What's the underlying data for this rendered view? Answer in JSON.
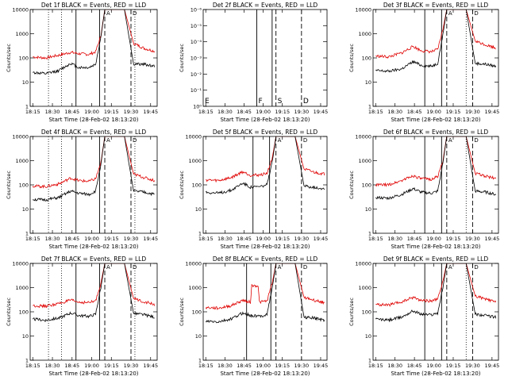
{
  "colors": {
    "black": "#000000",
    "red": "#e00000",
    "background": "#ffffff"
  },
  "panels": [
    {
      "title": "Det 1f BLACK = Events, RED = LLD",
      "xlabel": "Start Time (28-Feb-02 18:13:20)",
      "ylabel": "Counts/sec",
      "xticks": [
        "18:15",
        "18:30",
        "18:45",
        "19:00",
        "19:15",
        "19:30",
        "19:45"
      ],
      "yticks": [
        "1",
        "10",
        "100",
        "1000",
        "10000"
      ],
      "markers": [
        "A",
        "D"
      ]
    },
    {
      "title": "Det 2f BLACK = Events, RED = LLD",
      "xlabel": "Start Time (28-Feb-02 18:13:20)",
      "ylabel": "Counts/sec",
      "xticks": [
        "18:15",
        "18:30",
        "18:45",
        "19:00",
        "19:15",
        "19:30",
        "19:45"
      ],
      "yticks": [
        "10⁰",
        "10⁻¹",
        "10⁻²",
        "10⁻³",
        "10⁻⁴",
        "10⁻⁵",
        "10⁻⁶"
      ],
      "markers": [
        "E",
        "F",
        "S",
        "D"
      ]
    },
    {
      "title": "Det 3f BLACK = Events, RED = LLD",
      "xlabel": "Start Time (28-Feb-02 18:13:20)",
      "ylabel": "Counts/sec",
      "xticks": [
        "18:15",
        "18:30",
        "18:45",
        "19:00",
        "19:15",
        "19:30",
        "19:45"
      ],
      "yticks": [
        "1",
        "10",
        "100",
        "1000",
        "10000"
      ],
      "markers": [
        "A",
        "D"
      ]
    },
    {
      "title": "Det 4f BLACK = Events, RED = LLD",
      "xlabel": "Start Time (28-Feb-02 18:13:20)",
      "ylabel": "Counts/sec",
      "xticks": [
        "18:15",
        "18:30",
        "18:45",
        "19:00",
        "19:15",
        "19:30",
        "19:45"
      ],
      "yticks": [
        "1",
        "10",
        "100",
        "1000",
        "10000"
      ],
      "markers": [
        "A",
        "D"
      ]
    },
    {
      "title": "Det 5f BLACK = Events, RED = LLD",
      "xlabel": "Start Time (28-Feb-02 18:13:20)",
      "ylabel": "Counts/sec",
      "xticks": [
        "18:15",
        "18:30",
        "18:45",
        "19:00",
        "19:15",
        "19:30",
        "19:45"
      ],
      "yticks": [
        "1",
        "10",
        "100",
        "1000",
        "10000"
      ],
      "markers": [
        "A",
        "D"
      ]
    },
    {
      "title": "Det 6f BLACK = Events, RED = LLD",
      "xlabel": "Start Time (28-Feb-02 18:13:20)",
      "ylabel": "Counts/sec",
      "xticks": [
        "18:15",
        "18:30",
        "18:45",
        "19:00",
        "19:15",
        "19:30",
        "19:45"
      ],
      "yticks": [
        "1",
        "10",
        "100",
        "1000",
        "10000"
      ],
      "markers": [
        "A",
        "D"
      ]
    },
    {
      "title": "Det 7f BLACK = Events, RED = LLD",
      "xlabel": "Start Time (28-Feb-02 18:13:20)",
      "ylabel": "Counts/sec",
      "xticks": [
        "18:15",
        "18:30",
        "18:45",
        "19:00",
        "19:15",
        "19:30",
        "19:45"
      ],
      "yticks": [
        "1",
        "10",
        "100",
        "1000",
        "10000"
      ],
      "markers": [
        "A",
        "D"
      ]
    },
    {
      "title": "Det 8f BLACK = Events, RED = LLD",
      "xlabel": "Start Time (28-Feb-02 18:13:20)",
      "ylabel": "Counts/sec",
      "xticks": [
        "18:15",
        "18:30",
        "18:45",
        "19:00",
        "19:15",
        "19:30",
        "19:45"
      ],
      "yticks": [
        "1",
        "10",
        "100",
        "1000",
        "10000"
      ],
      "markers": [
        "A",
        "D"
      ]
    },
    {
      "title": "Det 9f BLACK = Events, RED = LLD",
      "xlabel": "Start Time (28-Feb-02 18:13:20)",
      "ylabel": "Counts/sec",
      "xticks": [
        "18:15",
        "18:30",
        "18:45",
        "19:00",
        "19:15",
        "19:30",
        "19:45"
      ],
      "yticks": [
        "1",
        "10",
        "100",
        "1000",
        "10000"
      ],
      "markers": [
        "A",
        "D"
      ]
    }
  ],
  "chart_data": [
    {
      "type": "line",
      "title": "Det 1f BLACK = Events, RED = LLD",
      "xlabel": "Start Time (28-Feb-02 18:13:20)",
      "ylabel": "Counts/sec",
      "ylim": [
        1,
        10000
      ],
      "yscale": "log",
      "xlim": [
        "18:13",
        "19:50"
      ],
      "series": [
        {
          "color": "#e00000",
          "x": [
            "18:15",
            "18:25",
            "18:35",
            "18:44",
            "18:50",
            "18:58",
            "19:03",
            "19:07",
            "19:10",
            "19:18",
            "19:25",
            "19:32",
            "19:40",
            "19:48"
          ],
          "y": [
            110,
            100,
            130,
            170,
            150,
            140,
            180,
            800,
            10000,
            10000,
            10000,
            400,
            250,
            190
          ]
        },
        {
          "color": "#000000",
          "x": [
            "18:15",
            "18:25",
            "18:35",
            "18:44",
            "18:50",
            "18:58",
            "19:03",
            "19:07",
            "19:10",
            "19:18",
            "19:25",
            "19:32",
            "19:40",
            "19:48"
          ],
          "y": [
            25,
            22,
            30,
            60,
            40,
            40,
            55,
            700,
            10000,
            10000,
            10000,
            55,
            55,
            45
          ]
        }
      ],
      "vlines_solid": [
        "18:48",
        "19:06"
      ],
      "vlines_dotted": [
        "18:27",
        "18:37",
        "19:33"
      ],
      "vlines_dashed": [
        "19:10",
        "19:30"
      ]
    },
    {
      "type": "line",
      "title": "Det 2f BLACK = Events, RED = LLD",
      "xlabel": "Start Time (28-Feb-02 18:13:20)",
      "ylabel": "Counts/sec",
      "ylim": [
        1e-06,
        1
      ],
      "yscale": "log",
      "xlim": [
        "18:13",
        "19:50"
      ],
      "series": [],
      "vlines_solid": [
        "18:55",
        "19:07"
      ],
      "vlines_dotted": [],
      "vlines_dashed": [
        "19:10",
        "19:30"
      ]
    },
    {
      "type": "line",
      "title": "Det 3f BLACK = Events, RED = LLD",
      "xlabel": "Start Time (28-Feb-02 18:13:20)",
      "ylabel": "Counts/sec",
      "ylim": [
        1,
        10000
      ],
      "yscale": "log",
      "xlim": [
        "18:13",
        "19:50"
      ],
      "series": [
        {
          "color": "#e00000",
          "x": [
            "18:15",
            "18:25",
            "18:35",
            "18:44",
            "18:50",
            "18:58",
            "19:03",
            "19:07",
            "19:10",
            "19:18",
            "19:25",
            "19:32",
            "19:40",
            "19:48"
          ],
          "y": [
            120,
            110,
            160,
            300,
            200,
            180,
            220,
            1500,
            10000,
            10000,
            10000,
            500,
            350,
            260
          ]
        },
        {
          "color": "#000000",
          "x": [
            "18:15",
            "18:25",
            "18:35",
            "18:44",
            "18:50",
            "18:58",
            "19:03",
            "19:07",
            "19:10",
            "19:18",
            "19:25",
            "19:32",
            "19:40",
            "19:48"
          ],
          "y": [
            30,
            28,
            35,
            70,
            50,
            45,
            60,
            900,
            10000,
            10000,
            10000,
            60,
            55,
            45
          ]
        }
      ],
      "vlines_solid": [
        "18:53",
        "19:06"
      ],
      "vlines_dotted": [
        "19:25"
      ],
      "vlines_dashed": [
        "19:10",
        "19:30"
      ]
    },
    {
      "type": "line",
      "title": "Det 4f BLACK = Events, RED = LLD",
      "xlabel": "Start Time (28-Feb-02 18:13:20)",
      "ylabel": "Counts/sec",
      "ylim": [
        1,
        10000
      ],
      "yscale": "log",
      "xlim": [
        "18:13",
        "19:50"
      ],
      "series": [
        {
          "color": "#e00000",
          "x": [
            "18:15",
            "18:25",
            "18:35",
            "18:44",
            "18:50",
            "18:58",
            "19:03",
            "19:07",
            "19:10",
            "19:18",
            "19:25",
            "19:32",
            "19:40",
            "19:48"
          ],
          "y": [
            90,
            85,
            110,
            190,
            150,
            140,
            180,
            800,
            10000,
            10000,
            10000,
            280,
            200,
            150
          ]
        },
        {
          "color": "#000000",
          "x": [
            "18:15",
            "18:25",
            "18:35",
            "18:44",
            "18:50",
            "18:58",
            "19:03",
            "19:07",
            "19:10",
            "19:18",
            "19:25",
            "19:32",
            "19:40",
            "19:48"
          ],
          "y": [
            25,
            24,
            30,
            55,
            45,
            40,
            55,
            700,
            10000,
            10000,
            10000,
            55,
            50,
            40
          ]
        }
      ],
      "vlines_solid": [
        "18:48",
        "19:06"
      ],
      "vlines_dotted": [
        "18:27",
        "18:37",
        "19:33"
      ],
      "vlines_dashed": [
        "19:10",
        "19:30"
      ]
    },
    {
      "type": "line",
      "title": "Det 5f BLACK = Events, RED = LLD",
      "xlabel": "Start Time (28-Feb-02 18:13:20)",
      "ylabel": "Counts/sec",
      "ylim": [
        1,
        10000
      ],
      "yscale": "log",
      "xlim": [
        "18:13",
        "19:50"
      ],
      "series": [
        {
          "color": "#e00000",
          "x": [
            "18:15",
            "18:25",
            "18:35",
            "18:44",
            "18:50",
            "18:58",
            "19:03",
            "19:07",
            "19:10",
            "19:18",
            "19:25",
            "19:32",
            "19:40",
            "19:48"
          ],
          "y": [
            160,
            150,
            200,
            350,
            250,
            260,
            300,
            1200,
            10000,
            10000,
            10000,
            450,
            330,
            280
          ]
        },
        {
          "color": "#000000",
          "x": [
            "18:15",
            "18:25",
            "18:35",
            "18:44",
            "18:50",
            "18:58",
            "19:03",
            "19:07",
            "19:10",
            "19:18",
            "19:25",
            "19:32",
            "19:40",
            "19:48"
          ],
          "y": [
            50,
            45,
            60,
            120,
            80,
            85,
            100,
            800,
            10000,
            10000,
            10000,
            90,
            80,
            70
          ]
        }
      ],
      "vlines_solid": [
        "18:52",
        "19:05"
      ],
      "vlines_dotted": [],
      "vlines_dashed": [
        "19:10",
        "19:30"
      ]
    },
    {
      "type": "line",
      "title": "Det 6f BLACK = Events, RED = LLD",
      "xlabel": "Start Time (28-Feb-02 18:13:20)",
      "ylabel": "Counts/sec",
      "ylim": [
        1,
        10000
      ],
      "yscale": "log",
      "xlim": [
        "18:13",
        "19:50"
      ],
      "series": [
        {
          "color": "#e00000",
          "x": [
            "18:15",
            "18:25",
            "18:35",
            "18:44",
            "18:50",
            "18:58",
            "19:03",
            "19:07",
            "19:10",
            "19:18",
            "19:25",
            "19:32",
            "19:40",
            "19:48"
          ],
          "y": [
            100,
            100,
            150,
            240,
            180,
            170,
            220,
            1000,
            10000,
            10000,
            10000,
            300,
            230,
            180
          ]
        },
        {
          "color": "#000000",
          "x": [
            "18:15",
            "18:25",
            "18:35",
            "18:44",
            "18:50",
            "18:58",
            "19:03",
            "19:07",
            "19:10",
            "19:18",
            "19:25",
            "19:32",
            "19:40",
            "19:48"
          ],
          "y": [
            30,
            28,
            40,
            70,
            50,
            45,
            55,
            800,
            10000,
            10000,
            10000,
            55,
            50,
            40
          ]
        }
      ],
      "vlines_solid": [
        "18:53",
        "19:06"
      ],
      "vlines_dotted": [
        "19:25"
      ],
      "vlines_dashed": [
        "19:10",
        "19:30"
      ]
    },
    {
      "type": "line",
      "title": "Det 7f BLACK = Events, RED = LLD",
      "xlabel": "Start Time (28-Feb-02 18:13:20)",
      "ylabel": "Counts/sec",
      "ylim": [
        1,
        10000
      ],
      "yscale": "log",
      "xlim": [
        "18:13",
        "19:50"
      ],
      "series": [
        {
          "color": "#e00000",
          "x": [
            "18:15",
            "18:25",
            "18:35",
            "18:44",
            "18:50",
            "18:58",
            "19:03",
            "19:07",
            "19:10",
            "19:18",
            "19:25",
            "19:32",
            "19:40",
            "19:48"
          ],
          "y": [
            180,
            170,
            220,
            300,
            250,
            240,
            280,
            1500,
            10000,
            10000,
            10000,
            350,
            260,
            200
          ]
        },
        {
          "color": "#000000",
          "x": [
            "18:15",
            "18:25",
            "18:35",
            "18:44",
            "18:50",
            "18:58",
            "19:03",
            "19:07",
            "19:10",
            "19:18",
            "19:25",
            "19:32",
            "19:40",
            "19:48"
          ],
          "y": [
            50,
            45,
            55,
            90,
            70,
            65,
            80,
            1000,
            10000,
            10000,
            10000,
            85,
            75,
            60
          ]
        }
      ],
      "vlines_solid": [
        "18:48",
        "19:06"
      ],
      "vlines_dotted": [
        "18:27",
        "18:37",
        "19:33"
      ],
      "vlines_dashed": [
        "19:10",
        "19:30"
      ]
    },
    {
      "type": "line",
      "title": "Det 8f BLACK = Events, RED = LLD",
      "xlabel": "Start Time (28-Feb-02 18:13:20)",
      "ylabel": "Counts/sec",
      "ylim": [
        1,
        10000
      ],
      "yscale": "log",
      "xlim": [
        "18:13",
        "19:50"
      ],
      "series": [
        {
          "color": "#e00000",
          "x": [
            "18:15",
            "18:25",
            "18:35",
            "18:44",
            "18:50",
            "18:51",
            "18:56",
            "18:57",
            "19:03",
            "19:07",
            "19:10",
            "19:18",
            "19:25",
            "19:32",
            "19:40",
            "19:48"
          ],
          "y": [
            150,
            140,
            180,
            300,
            250,
            1200,
            1200,
            250,
            280,
            1500,
            10000,
            10000,
            10000,
            400,
            300,
            240
          ]
        },
        {
          "color": "#000000",
          "x": [
            "18:15",
            "18:25",
            "18:35",
            "18:44",
            "18:50",
            "18:58",
            "19:03",
            "19:07",
            "19:10",
            "19:18",
            "19:25",
            "19:32",
            "19:40",
            "19:48"
          ],
          "y": [
            40,
            38,
            50,
            90,
            70,
            65,
            80,
            900,
            10000,
            10000,
            10000,
            60,
            55,
            45
          ]
        }
      ],
      "vlines_solid": [
        "18:47",
        "19:06"
      ],
      "vlines_dotted": [],
      "vlines_dashed": [
        "19:10",
        "19:30"
      ]
    },
    {
      "type": "line",
      "title": "Det 9f BLACK = Events, RED = LLD",
      "xlabel": "Start Time (28-Feb-02 18:13:20)",
      "ylabel": "Counts/sec",
      "ylim": [
        1,
        10000
      ],
      "yscale": "log",
      "xlim": [
        "18:13",
        "19:50"
      ],
      "series": [
        {
          "color": "#e00000",
          "x": [
            "18:15",
            "18:25",
            "18:35",
            "18:44",
            "18:50",
            "18:58",
            "19:03",
            "19:07",
            "19:10",
            "19:18",
            "19:25",
            "19:32",
            "19:40",
            "19:48"
          ],
          "y": [
            200,
            190,
            250,
            400,
            300,
            280,
            330,
            1800,
            10000,
            10000,
            10000,
            450,
            330,
            250
          ]
        },
        {
          "color": "#000000",
          "x": [
            "18:15",
            "18:25",
            "18:35",
            "18:44",
            "18:50",
            "18:58",
            "19:03",
            "19:07",
            "19:10",
            "19:18",
            "19:25",
            "19:32",
            "19:40",
            "19:48"
          ],
          "y": [
            50,
            45,
            60,
            110,
            80,
            75,
            90,
            1000,
            10000,
            10000,
            10000,
            80,
            70,
            60
          ]
        }
      ],
      "vlines_solid": [
        "18:53",
        "19:06"
      ],
      "vlines_dotted": [
        "19:25"
      ],
      "vlines_dashed": [
        "19:10",
        "19:30"
      ]
    }
  ]
}
